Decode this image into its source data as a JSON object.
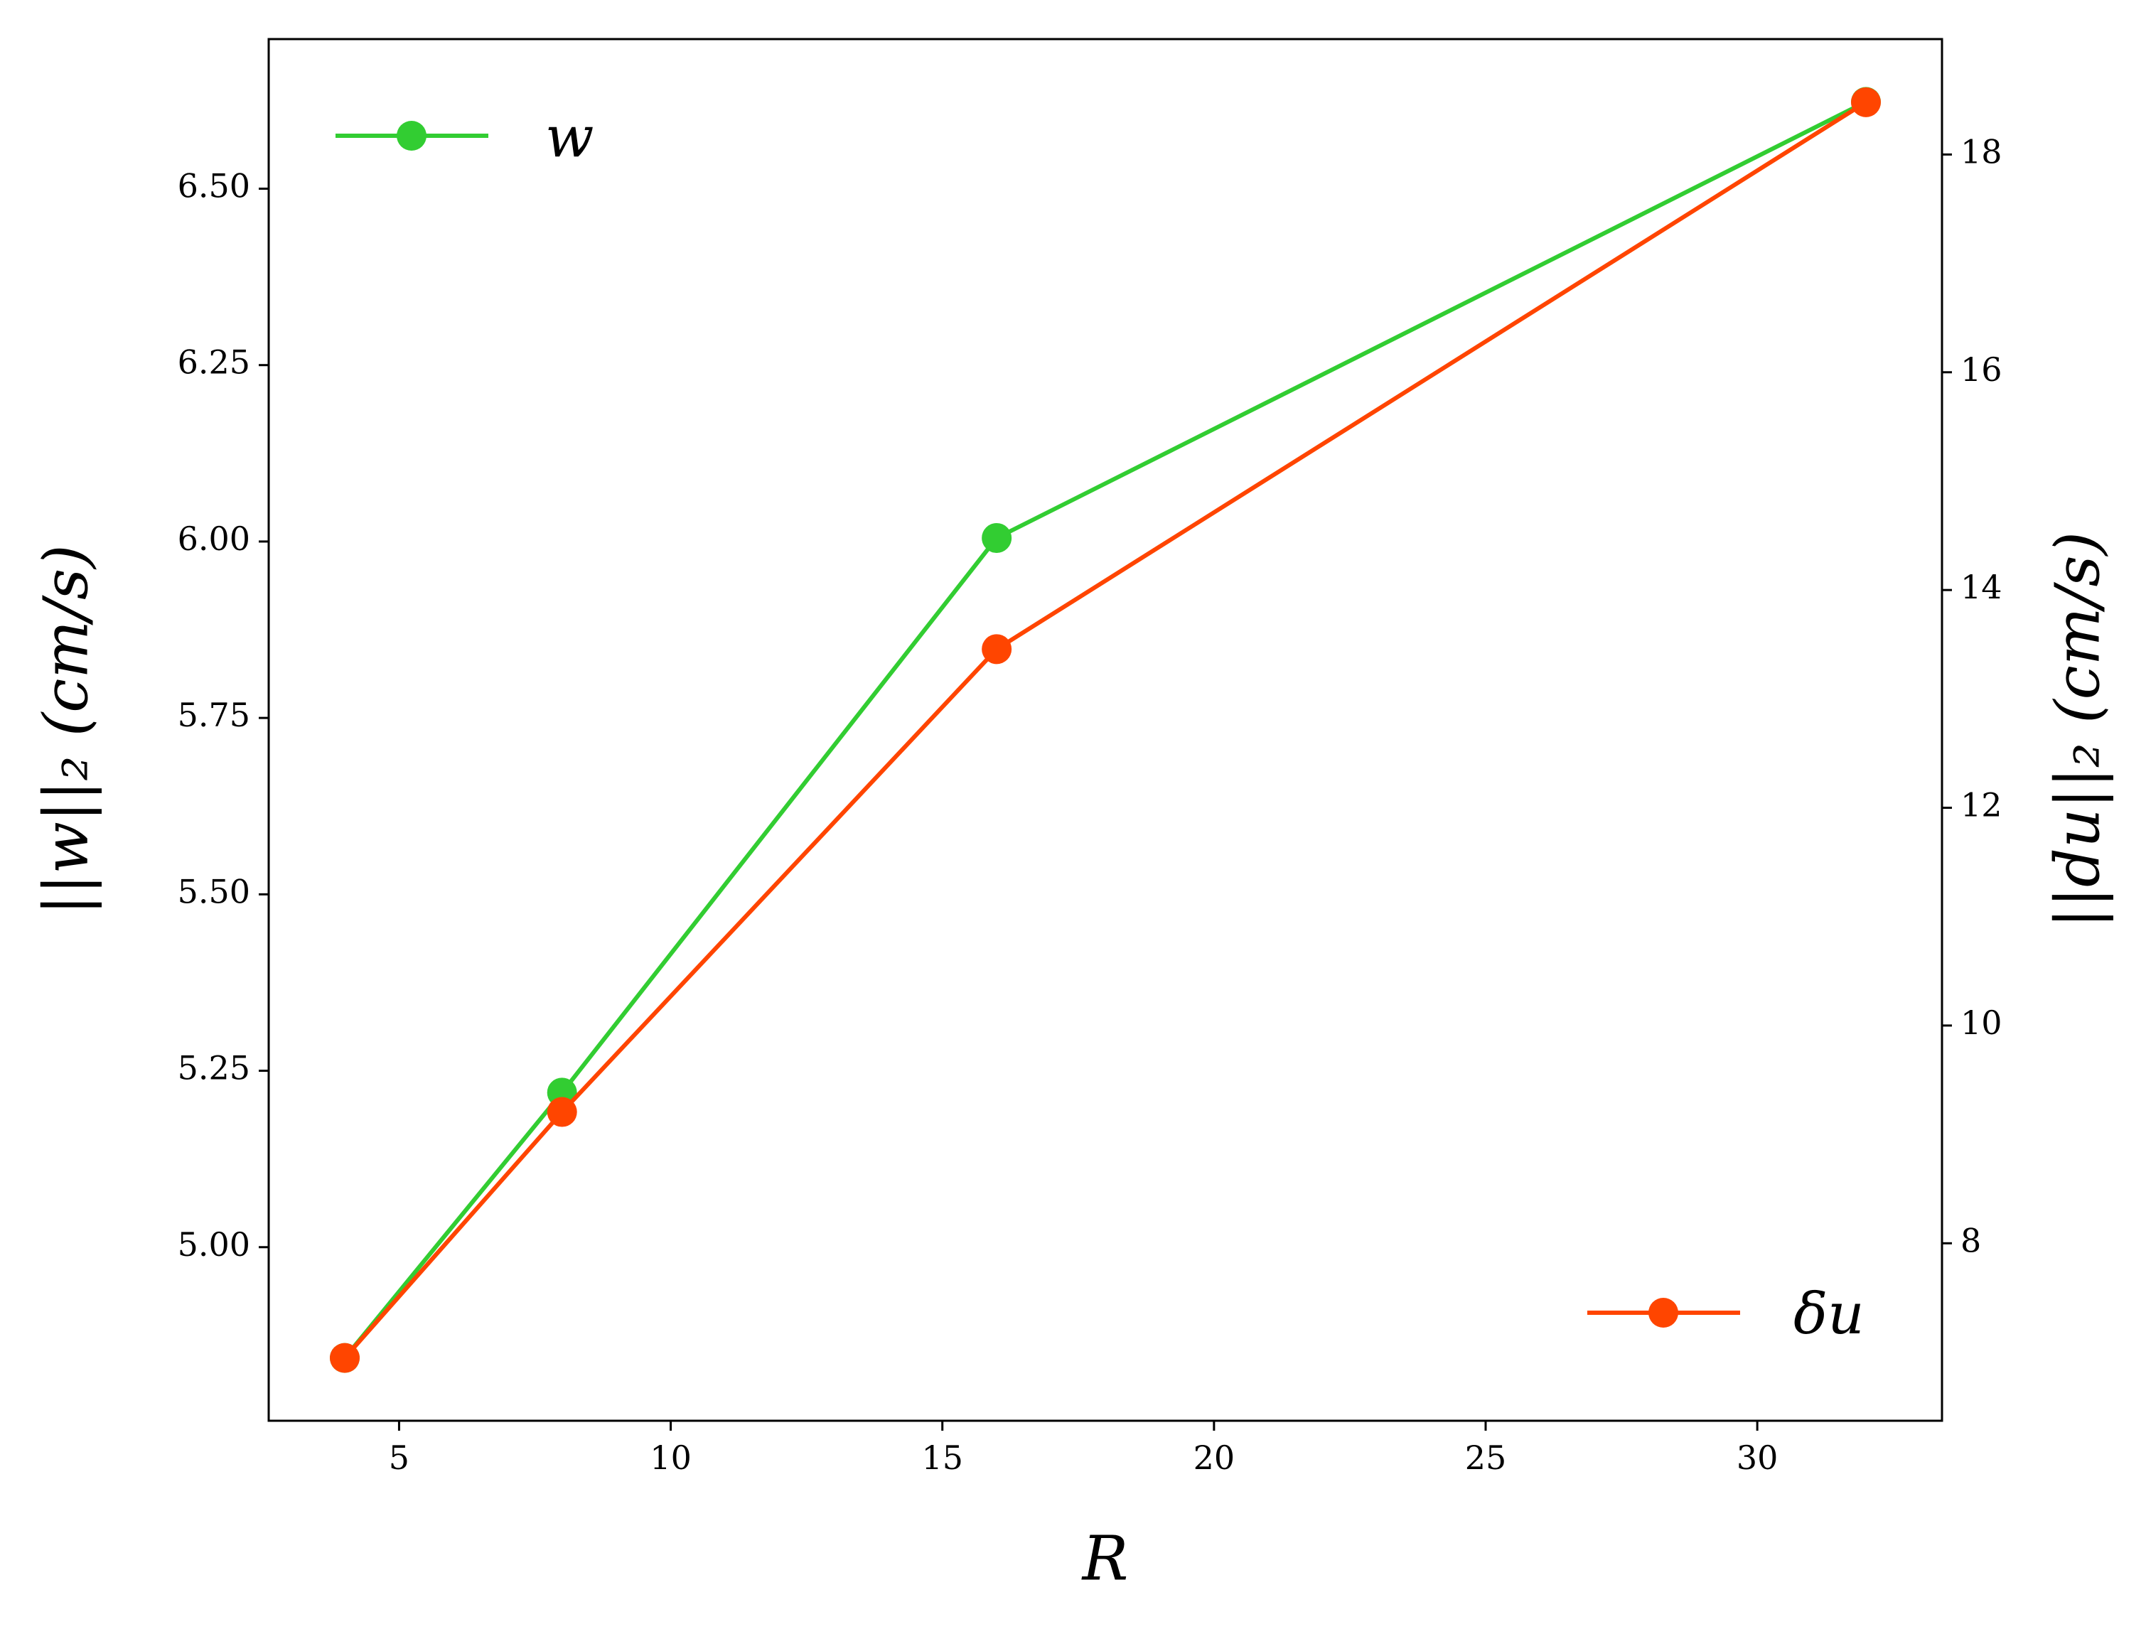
{
  "chart_data": {
    "type": "line",
    "x_label": "R",
    "y_label": "||w||₂  (cm/s)",
    "y2_label": "||du||₂  (cm/s)",
    "x": [
      4,
      8,
      16,
      32
    ],
    "series": [
      {
        "name": "w",
        "color": "#32cd32",
        "values": [
          4.843,
          5.219,
          6.005,
          6.623
        ],
        "legend_loc": "upper left"
      },
      {
        "name": "δu",
        "color": "#ff4500",
        "values": [
          6.947,
          9.206,
          13.457,
          18.48
        ],
        "axis": "y2",
        "legend_loc": "lower right"
      }
    ],
    "xlim": [
      2.6,
      33.4
    ],
    "xticks": [
      5,
      10,
      15,
      20,
      25,
      30
    ],
    "ylim": [
      4.754,
      6.712
    ],
    "yticks": [
      {
        "value": 5,
        "label": "5.00"
      },
      {
        "value": 5.25,
        "label": "5.25"
      },
      {
        "value": 5.5,
        "label": "5.50"
      },
      {
        "value": 5.75,
        "label": "5.75"
      },
      {
        "value": 6,
        "label": "6.00"
      },
      {
        "value": 6.25,
        "label": "6.25"
      },
      {
        "value": 6.5,
        "label": "6.50"
      }
    ],
    "y2lim": [
      6.37,
      19.06
    ],
    "y2ticks": [
      8,
      10,
      12,
      14,
      16,
      18
    ],
    "grid": false
  }
}
